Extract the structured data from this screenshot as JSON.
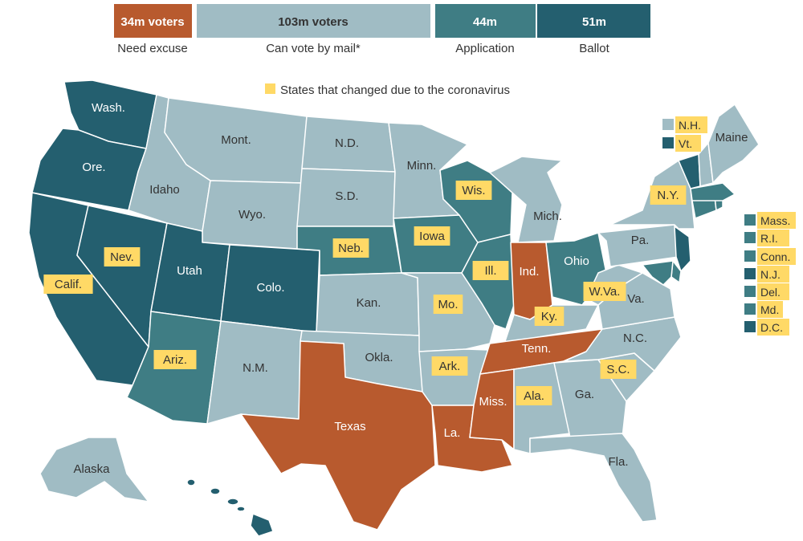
{
  "colors": {
    "need_excuse": "#b85a2e",
    "can_vote_by_mail": "#a0bcc4",
    "application": "#3f7d84",
    "ballot": "#245f6f",
    "highlight": "#ffd966",
    "state_border": "#ffffff",
    "text_dark": "#333333",
    "text_light": "#ffffff"
  },
  "header_bar": {
    "need_excuse": {
      "value": "34m voters",
      "label": "Need excuse"
    },
    "can_vote_by_mail": {
      "value": "103m voters",
      "label": "Can vote by mail*"
    },
    "application": {
      "value": "44m",
      "label": "Application"
    },
    "ballot": {
      "value": "51m",
      "label": "Ballot"
    }
  },
  "legend": {
    "label": "States that changed due to the coronavirus"
  },
  "map": {
    "states": [
      {
        "abbr": "Wash.",
        "category": "ballot",
        "changed": false
      },
      {
        "abbr": "Ore.",
        "category": "ballot",
        "changed": false
      },
      {
        "abbr": "Calif.",
        "category": "ballot",
        "changed": true
      },
      {
        "abbr": "Nev.",
        "category": "ballot",
        "changed": true
      },
      {
        "abbr": "Idaho",
        "category": "can_vote_by_mail",
        "changed": false
      },
      {
        "abbr": "Mont.",
        "category": "can_vote_by_mail",
        "changed": false
      },
      {
        "abbr": "Wyo.",
        "category": "can_vote_by_mail",
        "changed": false
      },
      {
        "abbr": "Utah",
        "category": "ballot",
        "changed": false
      },
      {
        "abbr": "Colo.",
        "category": "ballot",
        "changed": false
      },
      {
        "abbr": "Ariz.",
        "category": "application",
        "changed": true
      },
      {
        "abbr": "N.M.",
        "category": "can_vote_by_mail",
        "changed": false
      },
      {
        "abbr": "N.D.",
        "category": "can_vote_by_mail",
        "changed": false
      },
      {
        "abbr": "S.D.",
        "category": "can_vote_by_mail",
        "changed": false
      },
      {
        "abbr": "Neb.",
        "category": "application",
        "changed": true
      },
      {
        "abbr": "Kan.",
        "category": "can_vote_by_mail",
        "changed": false
      },
      {
        "abbr": "Okla.",
        "category": "can_vote_by_mail",
        "changed": false
      },
      {
        "abbr": "Texas",
        "category": "need_excuse",
        "changed": false
      },
      {
        "abbr": "Minn.",
        "category": "can_vote_by_mail",
        "changed": false
      },
      {
        "abbr": "Iowa",
        "category": "application",
        "changed": true
      },
      {
        "abbr": "Mo.",
        "category": "can_vote_by_mail",
        "changed": true
      },
      {
        "abbr": "Ark.",
        "category": "can_vote_by_mail",
        "changed": true
      },
      {
        "abbr": "La.",
        "category": "need_excuse",
        "changed": false
      },
      {
        "abbr": "Wis.",
        "category": "application",
        "changed": true
      },
      {
        "abbr": "Ill.",
        "category": "application",
        "changed": true
      },
      {
        "abbr": "Mich.",
        "category": "can_vote_by_mail",
        "changed": false
      },
      {
        "abbr": "Ind.",
        "category": "need_excuse",
        "changed": false
      },
      {
        "abbr": "Ohio",
        "category": "application",
        "changed": false
      },
      {
        "abbr": "Ky.",
        "category": "can_vote_by_mail",
        "changed": true
      },
      {
        "abbr": "Tenn.",
        "category": "need_excuse",
        "changed": false
      },
      {
        "abbr": "Miss.",
        "category": "need_excuse",
        "changed": false
      },
      {
        "abbr": "Ala.",
        "category": "can_vote_by_mail",
        "changed": true
      },
      {
        "abbr": "Ga.",
        "category": "can_vote_by_mail",
        "changed": false
      },
      {
        "abbr": "Fla.",
        "category": "can_vote_by_mail",
        "changed": false
      },
      {
        "abbr": "S.C.",
        "category": "can_vote_by_mail",
        "changed": true
      },
      {
        "abbr": "N.C.",
        "category": "can_vote_by_mail",
        "changed": false
      },
      {
        "abbr": "Va.",
        "category": "can_vote_by_mail",
        "changed": false
      },
      {
        "abbr": "W.Va.",
        "category": "can_vote_by_mail",
        "changed": true
      },
      {
        "abbr": "Pa.",
        "category": "can_vote_by_mail",
        "changed": false
      },
      {
        "abbr": "N.Y.",
        "category": "can_vote_by_mail",
        "changed": true
      },
      {
        "abbr": "Maine",
        "category": "can_vote_by_mail",
        "changed": false
      },
      {
        "abbr": "Alaska",
        "category": "can_vote_by_mail",
        "changed": false
      },
      {
        "abbr": "Hawaii",
        "category": "ballot",
        "changed": false
      }
    ],
    "northeast_keys": [
      {
        "abbr": "N.H.",
        "category": "can_vote_by_mail",
        "changed": true
      },
      {
        "abbr": "Vt.",
        "category": "ballot",
        "changed": true
      },
      {
        "abbr": "Mass.",
        "category": "application",
        "changed": true
      },
      {
        "abbr": "R.I.",
        "category": "application",
        "changed": true
      },
      {
        "abbr": "Conn.",
        "category": "application",
        "changed": true
      },
      {
        "abbr": "N.J.",
        "category": "ballot",
        "changed": true
      },
      {
        "abbr": "Del.",
        "category": "application",
        "changed": true
      },
      {
        "abbr": "Md.",
        "category": "application",
        "changed": true
      },
      {
        "abbr": "D.C.",
        "category": "ballot",
        "changed": true
      }
    ]
  }
}
